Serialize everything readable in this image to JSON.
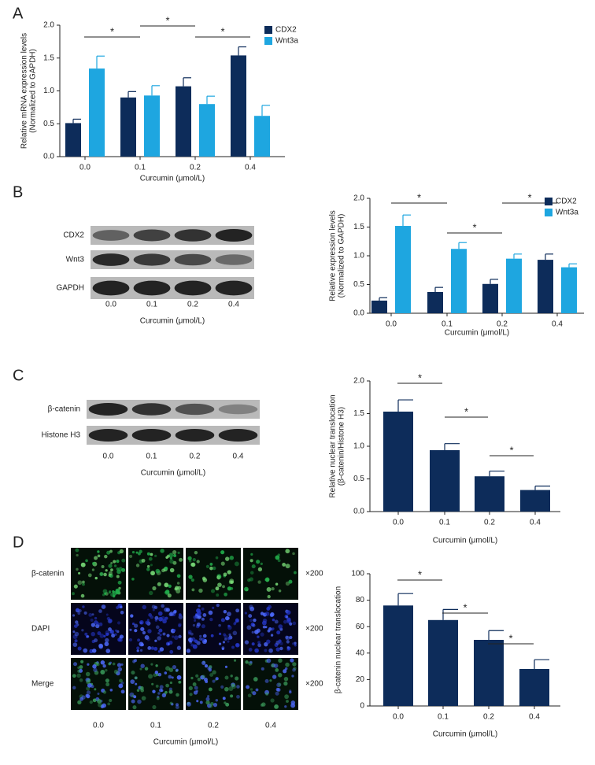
{
  "panel_letters": [
    "A",
    "B",
    "C",
    "D"
  ],
  "blot_b": {
    "rows": [
      "CDX2",
      "Wnt3",
      "GAPDH"
    ],
    "lanes": [
      "0.0",
      "0.1",
      "0.2",
      "0.4"
    ],
    "x_label": "Curcumin (μmol/L)"
  },
  "blot_c": {
    "rows": [
      "β-catenin",
      "Histone H3"
    ],
    "lanes": [
      "0.0",
      "0.1",
      "0.2",
      "0.4"
    ],
    "x_label": "Curcumin (μmol/L)"
  },
  "micro_d": {
    "rows": [
      "β-catenin",
      "DAPI",
      "Merge"
    ],
    "magnification": [
      "×200",
      "×200",
      "×200"
    ],
    "lanes": [
      "0.0",
      "0.1",
      "0.2",
      "0.4"
    ],
    "x_label": "Curcumin (μmol/L)"
  },
  "chart_data": [
    {
      "type": "bar",
      "categories": [
        "0.0",
        "0.1",
        "0.2",
        "0.4"
      ],
      "series": [
        {
          "name": "CDX2",
          "color": "#0d2c5a",
          "values": [
            0.51,
            0.9,
            1.07,
            1.54
          ],
          "errors": [
            0.06,
            0.09,
            0.13,
            0.13
          ]
        },
        {
          "name": "Wnt3a",
          "color": "#1ea6e0",
          "values": [
            1.34,
            0.93,
            0.8,
            0.62
          ],
          "errors": [
            0.19,
            0.15,
            0.12,
            0.16
          ]
        }
      ],
      "ylim": [
        0,
        2
      ],
      "yticks": [
        {
          "value": 0,
          "label": "0.0"
        },
        {
          "value": 0.5,
          "label": "0.5"
        },
        {
          "value": 1,
          "label": "1.0"
        },
        {
          "value": 1.5,
          "label": "1.5"
        },
        {
          "value": 2,
          "label": "2.0"
        }
      ],
      "x_label": "Curcumin (μmol/L)",
      "y_label": [
        "Relative mRNA expression levels",
        "(Normalized to GAPDH)"
      ],
      "annotations": [
        "*",
        "*",
        "*"
      ],
      "legend": "upper right"
    },
    {
      "type": "bar",
      "categories": [
        "0.0",
        "0.1",
        "0.2",
        "0.4"
      ],
      "series": [
        {
          "name": "CDX2",
          "color": "#0d2c5a",
          "values": [
            0.22,
            0.37,
            0.51,
            0.93
          ],
          "errors": [
            0.05,
            0.08,
            0.08,
            0.1
          ]
        },
        {
          "name": "Wnt3a",
          "color": "#1ea6e0",
          "values": [
            1.52,
            1.12,
            0.95,
            0.8
          ],
          "errors": [
            0.19,
            0.11,
            0.08,
            0.06
          ]
        }
      ],
      "ylim": [
        0,
        2
      ],
      "yticks": [
        {
          "value": 0,
          "label": "0.0"
        },
        {
          "value": 0.5,
          "label": "0.5"
        },
        {
          "value": 1,
          "label": "1.0"
        },
        {
          "value": 1.5,
          "label": "1.5"
        },
        {
          "value": 2,
          "label": "2.0"
        }
      ],
      "x_label": "Curcumin (μmol/L)",
      "y_label": [
        "Relative expression levels",
        "(Normalized to GAPDH)"
      ],
      "annotations": [
        "*",
        "*",
        "*"
      ],
      "legend": "upper right"
    },
    {
      "type": "bar",
      "categories": [
        "0.0",
        "0.1",
        "0.2",
        "0.4"
      ],
      "series": [
        {
          "color": "#0d2c5a",
          "values": [
            1.53,
            0.94,
            0.54,
            0.33
          ],
          "errors": [
            0.18,
            0.1,
            0.08,
            0.06
          ]
        }
      ],
      "ylim": [
        0,
        2
      ],
      "yticks": [
        {
          "value": 0,
          "label": "0.0"
        },
        {
          "value": 0.5,
          "label": "0.5"
        },
        {
          "value": 1,
          "label": "1.0"
        },
        {
          "value": 1.5,
          "label": "1.5"
        },
        {
          "value": 2,
          "label": "2.0"
        }
      ],
      "x_label": "Curcumin (μmol/L)",
      "y_label": [
        "Relative nuclear translocation",
        "(β-catenin/Histone H3)"
      ],
      "annotations": [
        "*",
        "*",
        "*"
      ]
    },
    {
      "type": "bar",
      "categories": [
        "0.0",
        "0.1",
        "0.2",
        "0.4"
      ],
      "series": [
        {
          "color": "#0d2c5a",
          "values": [
            76,
            65,
            50,
            28
          ],
          "errors": [
            9,
            8,
            7,
            7
          ]
        }
      ],
      "ylim": [
        0,
        100
      ],
      "yticks": [
        0,
        20,
        40,
        60,
        80,
        100
      ],
      "x_label": "Curcumin (μmol/L)",
      "y_label": [
        "β-catenin nuclear translocation"
      ],
      "annotations": [
        "*",
        "*",
        "*"
      ]
    }
  ]
}
